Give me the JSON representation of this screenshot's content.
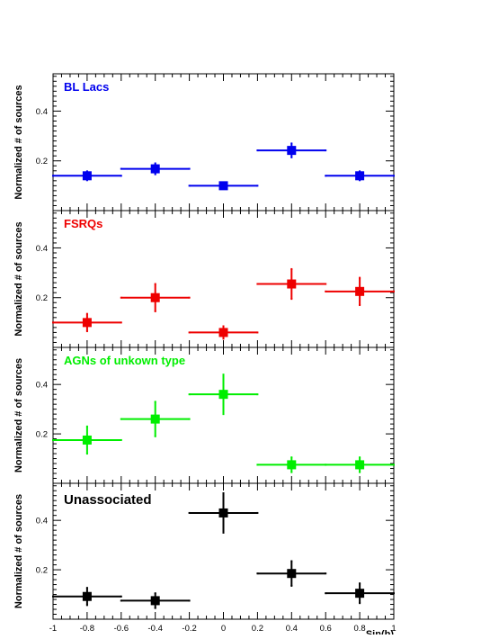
{
  "chart_data": {
    "type": "scatter",
    "description_of_layout": "",
    "xlabel": "Sin(b)",
    "ylabel": "Normalized # of sources",
    "xlim": [
      -1,
      1
    ],
    "ylim": [
      0,
      0.55
    ],
    "x_ticks": [
      "-1",
      "-0.8",
      "-0.6",
      "-0.4",
      "-0.2",
      "0",
      "0.2",
      "0.4",
      "0.6",
      "0.8",
      "1"
    ],
    "y_ticks": [
      "0.2",
      "0.4"
    ],
    "bin_half_width": 0.2,
    "panels": [
      {
        "name": "BL Lacs",
        "color": "#0000ee",
        "x": [
          -0.8,
          -0.4,
          0.0,
          0.4,
          0.8
        ],
        "y": [
          0.14,
          0.168,
          0.1,
          0.242,
          0.14
        ],
        "yerr": [
          0.018,
          0.022,
          0.01,
          0.028,
          0.018
        ]
      },
      {
        "name": "FSRQs",
        "color": "#ee0000",
        "x": [
          -0.8,
          -0.4,
          0.0,
          0.4,
          0.8
        ],
        "y": [
          0.1,
          0.2,
          0.06,
          0.255,
          0.225
        ],
        "yerr": [
          0.035,
          0.055,
          0.025,
          0.06,
          0.055
        ]
      },
      {
        "name": "AGNs of unkown type",
        "color": "#00ee00",
        "x": [
          -0.8,
          -0.4,
          0.0,
          0.4,
          0.8
        ],
        "y": [
          0.175,
          0.26,
          0.36,
          0.075,
          0.075
        ],
        "yerr": [
          0.055,
          0.07,
          0.08,
          0.03,
          0.03
        ]
      },
      {
        "name": "Unassociated",
        "color": "#000000",
        "x": [
          -0.8,
          -0.4,
          0.0,
          0.4,
          0.8
        ],
        "y": [
          0.092,
          0.075,
          0.43,
          0.185,
          0.105
        ],
        "yerr": [
          0.035,
          0.03,
          0.08,
          0.05,
          0.04
        ]
      }
    ]
  }
}
